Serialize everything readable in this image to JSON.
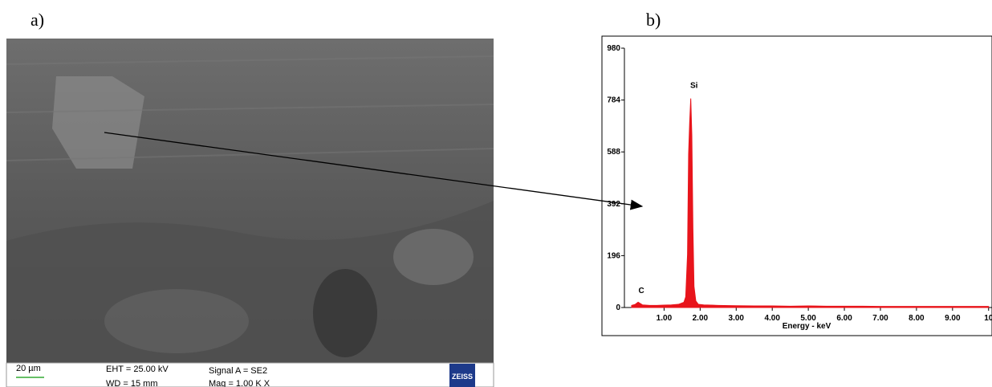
{
  "panels": {
    "a": "a)",
    "b": "b)"
  },
  "sem": {
    "scale_bar": "20 µm",
    "eht": "EHT = 25.00 kV",
    "wd": "WD =  15 mm",
    "signal": "Signal A = SE2",
    "mag": "Mag =   1.00 K X",
    "brand": "ZEISS"
  },
  "chart_data": {
    "type": "line",
    "xlabel": "Energy - keV",
    "color": "#e8141b",
    "xlim": [
      -0.1,
      10.05
    ],
    "xticks": [
      {
        "value": 1,
        "label": "1.00"
      },
      {
        "value": 2,
        "label": "2.00"
      },
      {
        "value": 3,
        "label": "3.00"
      },
      {
        "value": 4,
        "label": "4.00"
      },
      {
        "value": 5,
        "label": "5.00"
      },
      {
        "value": 6,
        "label": "6.00"
      },
      {
        "value": 7,
        "label": "7.00"
      },
      {
        "value": 8,
        "label": "8.00"
      },
      {
        "value": 9,
        "label": "9.00"
      },
      {
        "value": 10,
        "label": "10"
      }
    ],
    "ylim": [
      0,
      980
    ],
    "yticks": [
      0,
      196,
      392,
      588,
      784,
      980
    ],
    "annotations": [
      {
        "label": "Si",
        "x": 1.74,
        "y": 830
      },
      {
        "label": "C",
        "x": 0.28,
        "y": 55
      }
    ],
    "series": [
      {
        "x": [
          0.1,
          0.2,
          0.28,
          0.4,
          0.6,
          0.8,
          1.0,
          1.2,
          1.4,
          1.55,
          1.6,
          1.65,
          1.68,
          1.71,
          1.74,
          1.77,
          1.8,
          1.83,
          1.88,
          1.95,
          2.1,
          2.5,
          3,
          3.5,
          4,
          4.5,
          5,
          5.5,
          6,
          6.5,
          7,
          7.5,
          8,
          8.5,
          9,
          9.5,
          10
        ],
        "values": [
          8,
          12,
          20,
          10,
          8,
          8,
          9,
          10,
          12,
          20,
          40,
          200,
          580,
          700,
          790,
          650,
          300,
          80,
          25,
          12,
          10,
          8,
          7,
          6,
          6,
          5,
          6,
          5,
          5,
          5,
          4,
          4,
          4,
          4,
          4,
          4,
          4
        ]
      }
    ]
  }
}
